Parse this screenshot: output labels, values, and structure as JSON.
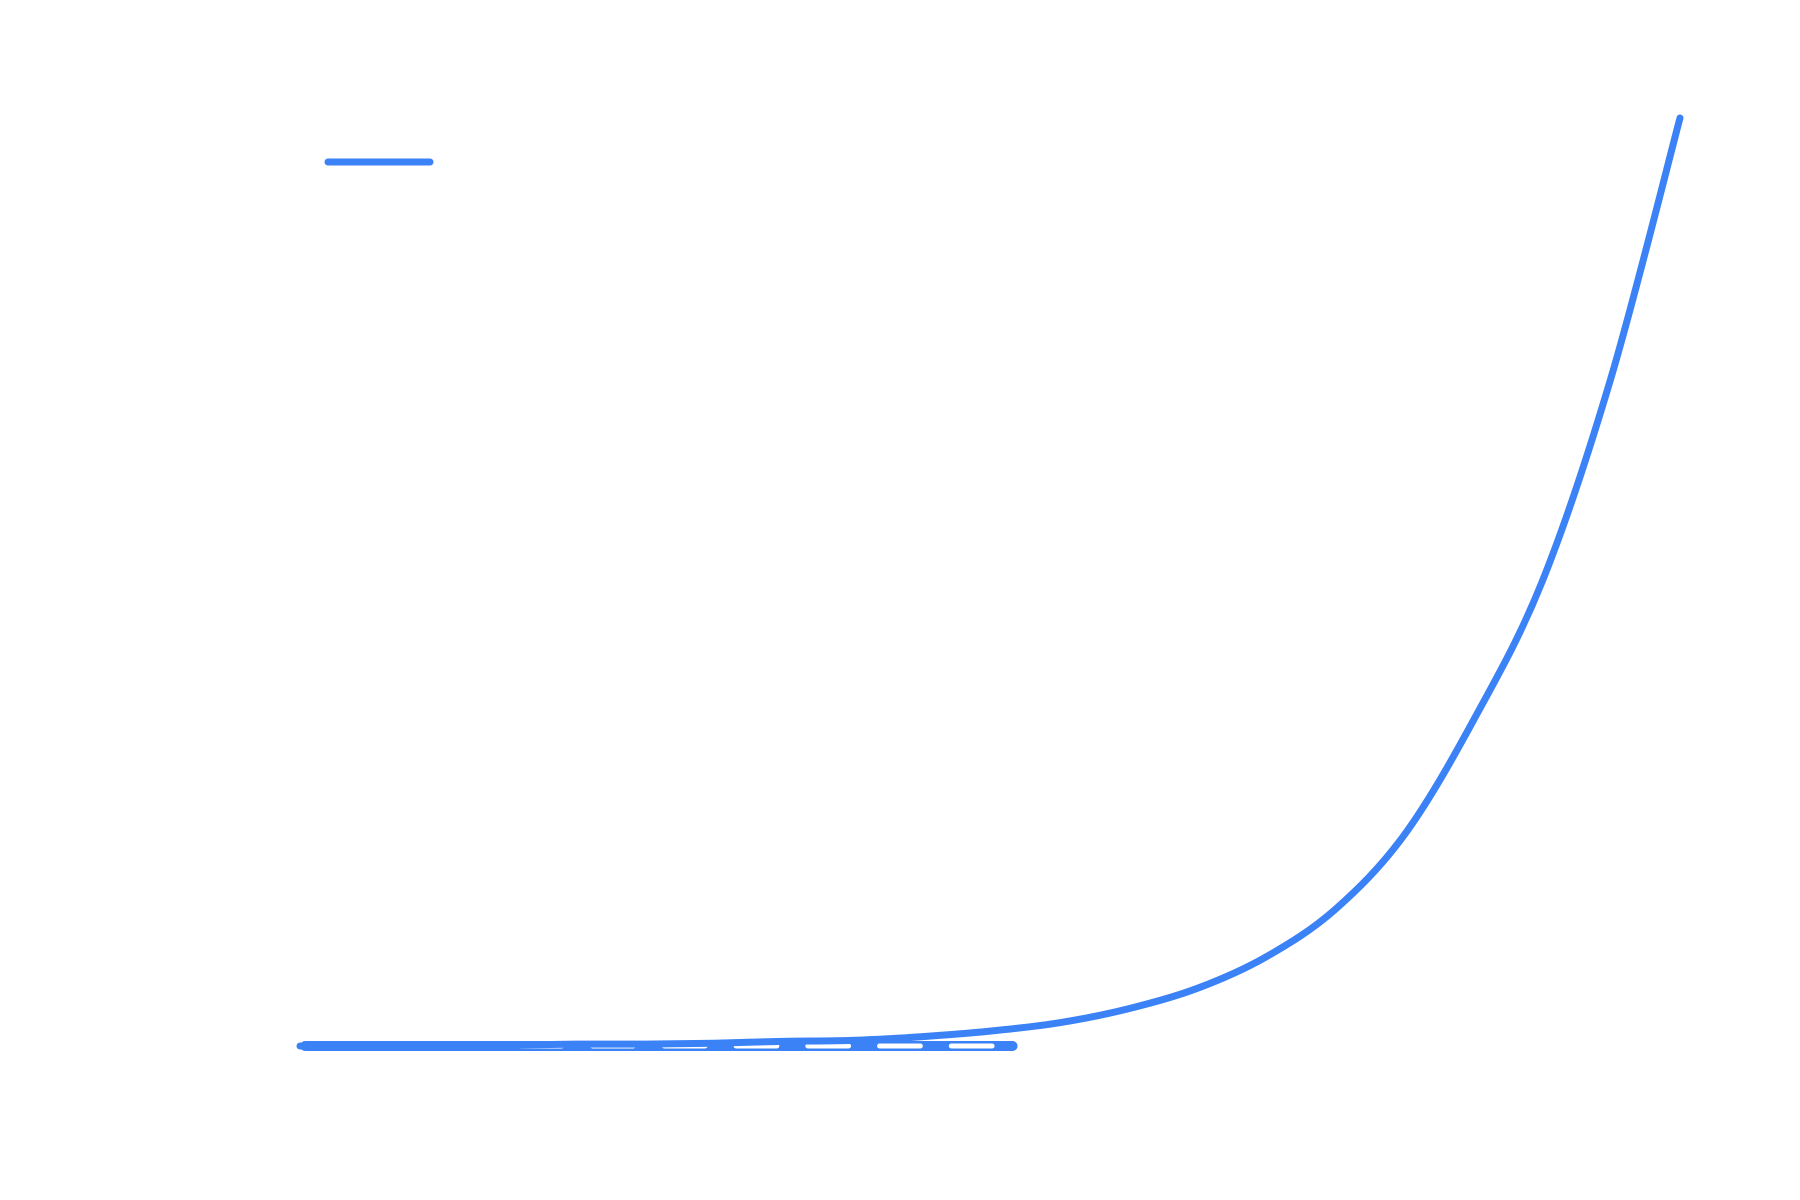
{
  "chart_data": {
    "type": "line",
    "title": "",
    "xlabel": "",
    "ylabel": "",
    "xlim": [
      0,
      1
    ],
    "ylim": [
      0,
      1
    ],
    "grid": false,
    "legend": {
      "placement": "top-left",
      "entries": [
        {
          "name": "",
          "color": "#3b82f6"
        }
      ]
    },
    "series": [
      {
        "name": "",
        "color": "#3b82f6",
        "x": [
          0.0,
          0.05,
          0.1,
          0.15,
          0.2,
          0.25,
          0.3,
          0.35,
          0.4,
          0.45,
          0.5,
          0.55,
          0.6,
          0.65,
          0.7,
          0.75,
          0.8,
          0.85,
          0.9,
          0.95,
          1.0
        ],
        "y": [
          0.0,
          0.0,
          0.001,
          0.001,
          0.002,
          0.002,
          0.003,
          0.005,
          0.006,
          0.01,
          0.016,
          0.025,
          0.04,
          0.062,
          0.096,
          0.147,
          0.227,
          0.35,
          0.5,
          0.72,
          1.0
        ]
      }
    ],
    "baseline_band": {
      "color": "#3b82f6",
      "x_range": [
        0.0,
        0.52
      ],
      "dash_segments": 10
    }
  }
}
